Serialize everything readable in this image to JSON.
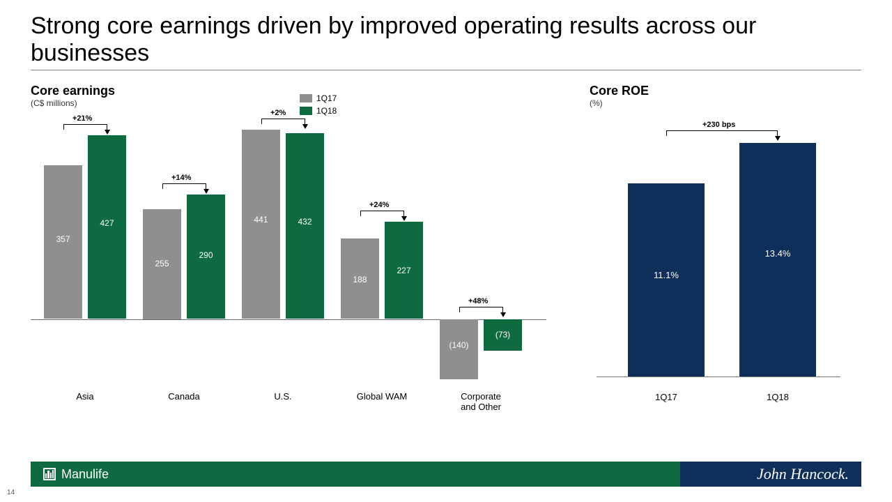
{
  "title": "Strong core earnings driven by improved operating results across our businesses",
  "earnings": {
    "title": "Core earnings",
    "subtitle": "(C$ millions)",
    "legend": {
      "q1": "1Q17",
      "q2": "1Q18"
    },
    "colors": {
      "q1": "#8f8f8f",
      "q2": "#0d6b3f",
      "baseline": "#666"
    },
    "categories": [
      "Asia",
      "Canada",
      "U.S.",
      "Global WAM",
      "Corporate\nand Other"
    ],
    "q1": [
      357,
      255,
      441,
      188,
      -140
    ],
    "q2": [
      427,
      290,
      432,
      227,
      -73
    ],
    "q1_labels": [
      "357",
      "255",
      "441",
      "188",
      "(140)"
    ],
    "q2_labels": [
      "427",
      "290",
      "432",
      "227",
      "(73)"
    ],
    "deltas": [
      "+21%",
      "+14%",
      "+2%",
      "+24%",
      "+48%"
    ],
    "ymax": 450,
    "ymin": -150,
    "label_fontsize": 12,
    "cat_fontsize": 13
  },
  "roe": {
    "title": "Core ROE",
    "subtitle": "(%)",
    "color": "#0d2f5a",
    "baseline_color": "#777",
    "categories": [
      "1Q17",
      "1Q18"
    ],
    "values": [
      11.1,
      13.4
    ],
    "labels": [
      "11.1%",
      "13.4%"
    ],
    "delta": "+230 bps",
    "ymax": 14
  },
  "footer": {
    "left_bg": "#0d6b3f",
    "right_bg": "#0d2f5a",
    "brand_left": "Manulife",
    "brand_right": "John Hancock."
  },
  "page_number": "14"
}
